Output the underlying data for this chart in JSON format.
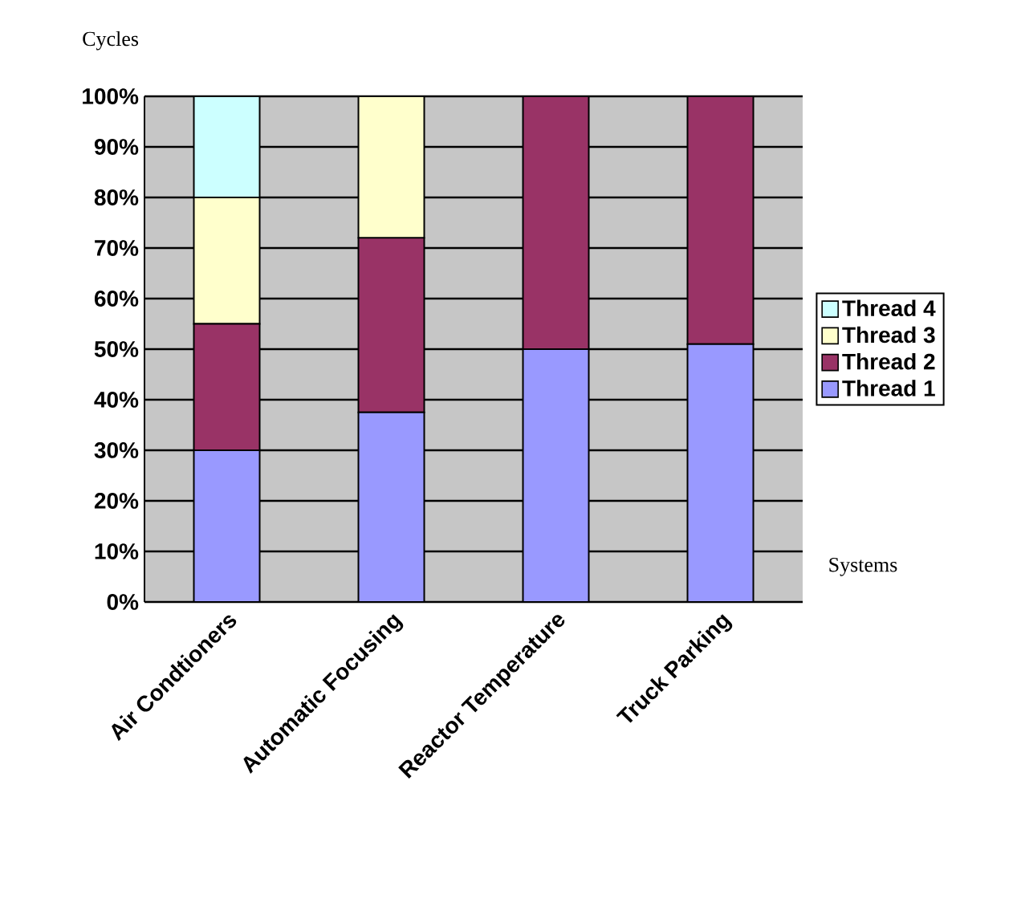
{
  "chart_data": {
    "type": "bar",
    "stacked": true,
    "xlabel": "Systems",
    "ylabel": "Cycles",
    "categories": [
      "Air Condtioners",
      "Automatic Focusing",
      "Reactor Temperature",
      "Truck Parking"
    ],
    "series": [
      {
        "name": "Thread 1",
        "color": "#9999ff",
        "values": [
          30,
          37.5,
          50,
          51
        ]
      },
      {
        "name": "Thread 2",
        "color": "#993366",
        "values": [
          25,
          34.5,
          50,
          49
        ]
      },
      {
        "name": "Thread 3",
        "color": "#ffffcc",
        "values": [
          25,
          28,
          0,
          0
        ]
      },
      {
        "name": "Thread 4",
        "color": "#ccffff",
        "values": [
          20,
          0,
          0,
          0
        ]
      }
    ],
    "ylim": [
      0,
      100
    ],
    "yticks": [
      {
        "value": 0,
        "label": "0%"
      },
      {
        "value": 10,
        "label": "10%"
      },
      {
        "value": 20,
        "label": "20%"
      },
      {
        "value": 30,
        "label": "30%"
      },
      {
        "value": 40,
        "label": "40%"
      },
      {
        "value": 50,
        "label": "50%"
      },
      {
        "value": 60,
        "label": "60%"
      },
      {
        "value": 70,
        "label": "70%"
      },
      {
        "value": 80,
        "label": "80%"
      },
      {
        "value": 90,
        "label": "90%"
      },
      {
        "value": 100,
        "label": "100%"
      }
    ],
    "grid": "y",
    "legend": "right"
  }
}
